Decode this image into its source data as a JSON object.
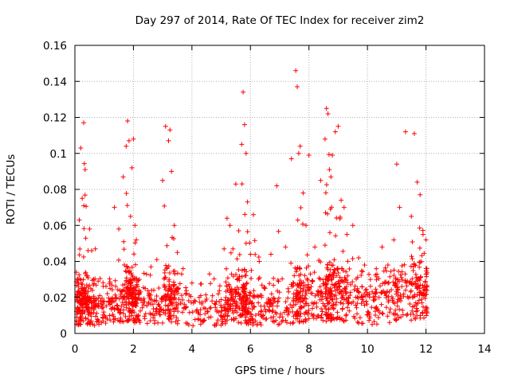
{
  "chart_data": {
    "type": "scatter",
    "title": "Day 297 of 2014, Rate Of TEC Index for receiver zim2",
    "xlabel": "GPS time / hours",
    "ylabel": "ROTI / TECUs",
    "xlim": [
      0,
      14
    ],
    "ylim": [
      0,
      0.16
    ],
    "x_ticks": [
      "0",
      "2",
      "4",
      "6",
      "8",
      "10",
      "12",
      "14"
    ],
    "y_ticks": [
      "0",
      "0.02",
      "0.04",
      "0.06",
      "0.08",
      "0.1",
      "0.12",
      "0.14",
      "0.16"
    ],
    "grid": true,
    "marker": "+",
    "color": "#ff0000",
    "series": [
      {
        "name": "ROTI",
        "x": [
          0.05,
          0.1,
          0.15,
          0.2,
          0.25,
          0.3,
          0.35,
          0.4,
          0.45,
          0.5,
          0.6,
          0.7,
          0.85,
          1.0,
          1.2,
          1.35,
          1.5,
          1.65,
          1.75,
          1.8,
          1.85,
          1.9,
          1.95,
          2.0,
          2.05,
          2.1,
          2.2,
          2.4,
          2.6,
          2.8,
          3.0,
          3.1,
          3.2,
          3.25,
          3.3,
          3.4,
          3.5,
          3.7,
          4.0,
          4.3,
          4.6,
          4.9,
          5.1,
          5.2,
          5.3,
          5.4,
          5.5,
          5.6,
          5.7,
          5.75,
          5.8,
          5.85,
          5.9,
          6.0,
          6.1,
          6.3,
          6.5,
          6.7,
          6.9,
          7.2,
          7.4,
          7.55,
          7.6,
          7.65,
          7.7,
          7.8,
          7.9,
          8.0,
          8.2,
          8.4,
          8.55,
          8.6,
          8.65,
          8.7,
          8.75,
          8.8,
          8.9,
          9.0,
          9.1,
          9.2,
          9.3,
          9.5,
          9.7,
          9.9,
          10.1,
          10.3,
          10.5,
          10.7,
          10.9,
          11.0,
          11.1,
          11.3,
          11.5,
          11.6,
          11.7,
          11.8,
          11.9,
          12.0
        ],
        "y": [
          0.034,
          0.028,
          0.063,
          0.103,
          0.075,
          0.117,
          0.091,
          0.032,
          0.046,
          0.058,
          0.024,
          0.047,
          0.021,
          0.018,
          0.025,
          0.07,
          0.058,
          0.087,
          0.104,
          0.118,
          0.107,
          0.065,
          0.092,
          0.108,
          0.06,
          0.052,
          0.03,
          0.025,
          0.037,
          0.041,
          0.085,
          0.115,
          0.107,
          0.113,
          0.09,
          0.06,
          0.045,
          0.036,
          0.028,
          0.021,
          0.033,
          0.022,
          0.047,
          0.064,
          0.06,
          0.047,
          0.083,
          0.057,
          0.105,
          0.134,
          0.116,
          0.1,
          0.073,
          0.044,
          0.066,
          0.04,
          0.025,
          0.044,
          0.082,
          0.048,
          0.097,
          0.146,
          0.137,
          0.1,
          0.104,
          0.078,
          0.06,
          0.099,
          0.048,
          0.085,
          0.108,
          0.125,
          0.122,
          0.091,
          0.087,
          0.099,
          0.112,
          0.115,
          0.074,
          0.07,
          0.055,
          0.06,
          0.042,
          0.038,
          0.03,
          0.036,
          0.048,
          0.038,
          0.052,
          0.094,
          0.07,
          0.112,
          0.065,
          0.111,
          0.084,
          0.077,
          0.055,
          0.052
        ],
        "baseline": [
          0.013,
          0.013,
          0.014,
          0.014,
          0.015,
          0.016,
          0.014,
          0.013,
          0.013,
          0.013,
          0.012,
          0.012,
          0.012,
          0.012,
          0.013,
          0.014,
          0.015,
          0.017,
          0.018,
          0.018,
          0.019,
          0.018,
          0.017,
          0.016,
          0.015,
          0.015,
          0.015,
          0.014,
          0.015,
          0.016,
          0.017,
          0.018,
          0.018,
          0.018,
          0.017,
          0.016,
          0.015,
          0.013,
          0.012,
          0.012,
          0.012,
          0.012,
          0.013,
          0.014,
          0.015,
          0.015,
          0.016,
          0.016,
          0.016,
          0.017,
          0.016,
          0.015,
          0.014,
          0.013,
          0.013,
          0.013,
          0.012,
          0.012,
          0.012,
          0.012,
          0.014,
          0.016,
          0.017,
          0.018,
          0.018,
          0.018,
          0.018,
          0.018,
          0.018,
          0.019,
          0.019,
          0.02,
          0.02,
          0.02,
          0.02,
          0.02,
          0.019,
          0.019,
          0.018,
          0.018,
          0.017,
          0.016,
          0.015,
          0.015,
          0.014,
          0.014,
          0.015,
          0.016,
          0.018,
          0.019,
          0.019,
          0.019,
          0.019,
          0.02,
          0.02,
          0.019,
          0.018,
          0.017
        ],
        "samples_per_epoch": 18
      }
    ]
  }
}
